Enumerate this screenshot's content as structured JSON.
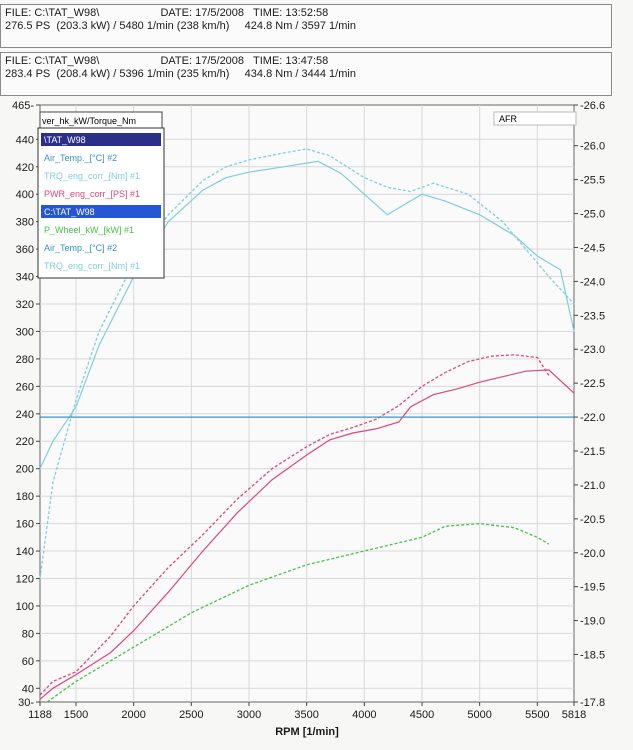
{
  "run_headers": [
    {
      "file": "FILE: C:\\TAT_W98\\",
      "date": "DATE: 17/5/2008",
      "time": "TIME: 13:52:58",
      "summary": "276.5 PS  (203.3 kW) / 5480 1/min (238 km/h)     424.8 Nm / 3597 1/min"
    },
    {
      "file": "FILE: C:\\TAT_W98\\",
      "date": "DATE: 17/5/2008",
      "time": "TIME: 13:47:58",
      "summary": "283.4 PS  (208.4 kW) / 5396 1/min (235 km/h)     434.8 Nm / 3444 1/min"
    }
  ],
  "colors": {
    "torque": "#7fcde0",
    "power": "#e0457a",
    "wheel": "#44c444",
    "afr": "#3a93c6",
    "sel1": "#2b2f8c",
    "sel2": "#2456d6"
  },
  "legend": {
    "header": "ver_hk_kW/Torque_Nm",
    "items": [
      {
        "text": "\\TAT_W98",
        "style": "selected-dark"
      },
      {
        "text": "Air_Temp._[°C] #2",
        "style": "afr"
      },
      {
        "text": "TRQ_eng_corr_[Nm] #1",
        "style": "torque"
      },
      {
        "text": "PWR_eng_corr_[PS] #1",
        "style": "power"
      },
      {
        "text": "C:\\TAT_W98",
        "style": "selected-blue"
      },
      {
        "text": "P_Wheel_kW_[kW] #1",
        "style": "wheel"
      },
      {
        "text": "Air_Temp._[°C] #2",
        "style": "afr"
      },
      {
        "text": "TRQ_eng_corr_[Nm] #1",
        "style": "torque"
      }
    ]
  },
  "chart_data": {
    "type": "line",
    "xlabel": "RPM  [1/min]",
    "xlim": [
      1188,
      5818
    ],
    "x_ticks": [
      1188,
      1500,
      2000,
      2500,
      3000,
      3500,
      4000,
      4500,
      5000,
      5500,
      5818
    ],
    "ylim": [
      30,
      465
    ],
    "y_ticks": [
      30,
      40,
      60,
      80,
      100,
      120,
      140,
      160,
      180,
      200,
      220,
      240,
      260,
      280,
      300,
      320,
      340,
      360,
      380,
      400,
      420,
      440,
      465
    ],
    "y2label": "AFR",
    "y2lim": [
      17.8,
      26.6
    ],
    "y2_ticks": [
      17.8,
      18.5,
      19.0,
      19.5,
      20.0,
      20.5,
      21.0,
      21.5,
      22.0,
      22.5,
      23.0,
      23.5,
      24.0,
      24.5,
      25.0,
      25.5,
      26.0,
      26.6
    ],
    "grid": true,
    "series": [
      {
        "name": "TRQ_eng_corr_[Nm] #1",
        "run": 1,
        "style": "solid",
        "color_key": "torque",
        "axis": "left",
        "x": [
          1188,
          1300,
          1500,
          1700,
          2000,
          2300,
          2600,
          2800,
          3000,
          3300,
          3600,
          3800,
          4000,
          4200,
          4300,
          4500,
          4700,
          5000,
          5300,
          5500,
          5700,
          5818
        ],
        "y": [
          200,
          220,
          245,
          290,
          340,
          380,
          403,
          412,
          416,
          420,
          424,
          415,
          400,
          385,
          390,
          400,
          395,
          385,
          370,
          355,
          345,
          300
        ]
      },
      {
        "name": "TRQ_eng_corr_[Nm] #1",
        "run": 2,
        "style": "dashed",
        "color_key": "torque",
        "axis": "left",
        "x": [
          1188,
          1300,
          1500,
          1700,
          2000,
          2300,
          2600,
          2800,
          3000,
          3300,
          3500,
          3700,
          4000,
          4200,
          4400,
          4600,
          4900,
          5200,
          5400,
          5600,
          5818
        ],
        "y": [
          120,
          190,
          250,
          300,
          350,
          385,
          410,
          420,
          425,
          430,
          433,
          428,
          412,
          405,
          402,
          408,
          400,
          380,
          360,
          340,
          320
        ]
      },
      {
        "name": "PWR_eng_corr_[PS] #1",
        "run": 1,
        "style": "solid",
        "color_key": "power",
        "axis": "left",
        "x": [
          1188,
          1300,
          1500,
          1800,
          2000,
          2300,
          2600,
          2900,
          3200,
          3500,
          3700,
          3900,
          4100,
          4300,
          4400,
          4600,
          4800,
          5000,
          5200,
          5400,
          5600,
          5818
        ],
        "y": [
          32,
          40,
          50,
          66,
          82,
          110,
          140,
          168,
          192,
          210,
          221,
          226,
          229,
          234,
          245,
          254,
          258,
          263,
          267,
          271,
          272,
          255
        ]
      },
      {
        "name": "PWR_eng_corr_[PS] #1",
        "run": 2,
        "style": "dashed",
        "color_key": "power",
        "axis": "left",
        "x": [
          1188,
          1300,
          1500,
          1800,
          2000,
          2300,
          2600,
          2900,
          3200,
          3500,
          3700,
          3900,
          4100,
          4300,
          4500,
          4700,
          4900,
          5100,
          5300,
          5500,
          5600
        ],
        "y": [
          35,
          45,
          52,
          78,
          100,
          128,
          152,
          178,
          200,
          216,
          225,
          230,
          236,
          246,
          260,
          270,
          278,
          282,
          283,
          281,
          268
        ]
      },
      {
        "name": "P_Wheel_kW_[kW] #1",
        "run": 2,
        "style": "dashed",
        "color_key": "wheel",
        "axis": "left",
        "x": [
          1250,
          1500,
          2000,
          2500,
          3000,
          3500,
          4000,
          4500,
          4700,
          5000,
          5300,
          5500,
          5600
        ],
        "y": [
          30,
          45,
          70,
          95,
          115,
          130,
          140,
          150,
          158,
          160,
          157,
          150,
          145
        ]
      },
      {
        "name": "Air_Temp._[°C] #2",
        "run": 2,
        "style": "solid",
        "color_key": "afr",
        "axis": "right",
        "x": [
          1188,
          5818
        ],
        "y": [
          22.0,
          22.0
        ]
      }
    ]
  }
}
